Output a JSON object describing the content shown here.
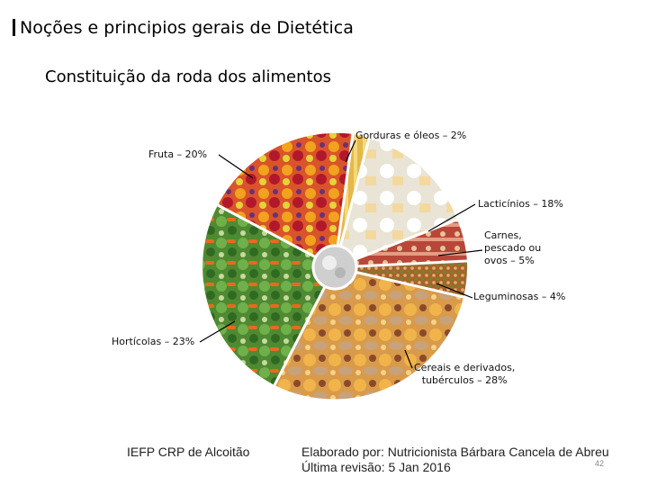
{
  "slide": {
    "title": "Noções e principios gerais de Dietética",
    "subtitle": "Constituição da roda dos alimentos"
  },
  "wheel": {
    "segments": [
      {
        "id": "gorduras",
        "label": "Gorduras e óleos – 2%",
        "percent": 2,
        "color": "#e6b84a"
      },
      {
        "id": "lacticinios",
        "label": "Lacticínios – 18%",
        "percent": 18,
        "color": "#e9e4d6"
      },
      {
        "id": "carnes",
        "label_lines": [
          "Carnes,",
          "pescado ou",
          "ovos – 5%"
        ],
        "percent": 5,
        "color": "#b8473a"
      },
      {
        "id": "leguminosas",
        "label": "Leguminosas – 4%",
        "percent": 4,
        "color": "#a8622c"
      },
      {
        "id": "cereais",
        "label_lines": [
          "Cereais e derivados,",
          "tubérculos – 28%"
        ],
        "percent": 28,
        "color": "#d99a4a"
      },
      {
        "id": "horticolas",
        "label": "Hortícolas – 23%",
        "percent": 23,
        "color": "#4f8a32"
      },
      {
        "id": "fruta",
        "label": "Fruta – 20%",
        "percent": 20,
        "color": "#d9542a"
      }
    ]
  },
  "footer": {
    "left": "IEFP CRP de Alcoitão",
    "right_line1": "Elaborado por: Nutricionista Bárbara Cancela de Abreu",
    "right_line2": "Última revisão: 5 Jan 2016",
    "page_number": "42"
  }
}
